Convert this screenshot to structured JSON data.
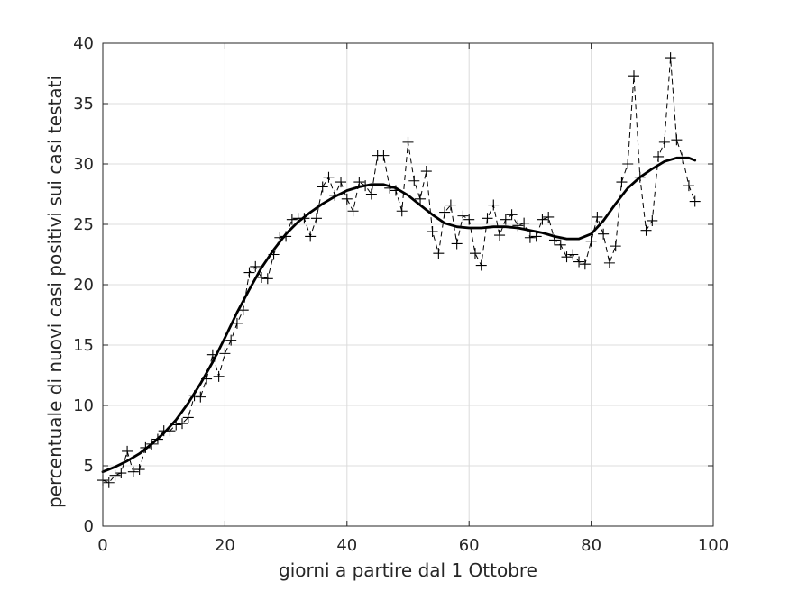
{
  "chart_data": {
    "type": "line",
    "title": "",
    "xlabel": "giorni a partire dal 1 Ottobre",
    "ylabel": "percentuale di nuovi casi positivi sui casi testati",
    "xlim": [
      0,
      100
    ],
    "ylim": [
      0,
      40
    ],
    "xticks": [
      "0",
      "20",
      "40",
      "60",
      "80",
      "100"
    ],
    "yticks": [
      "0",
      "5",
      "10",
      "15",
      "20",
      "25",
      "30",
      "35",
      "40"
    ],
    "grid": true,
    "series": [
      {
        "style": "dashed-with-plus-markers",
        "color": "#000000",
        "x": [
          0,
          1,
          2,
          3,
          4,
          5,
          6,
          7,
          8,
          9,
          10,
          11,
          12,
          13,
          14,
          15,
          16,
          17,
          18,
          19,
          20,
          21,
          22,
          23,
          24,
          25,
          26,
          27,
          28,
          29,
          30,
          31,
          32,
          33,
          34,
          35,
          36,
          37,
          38,
          39,
          40,
          41,
          42,
          43,
          44,
          45,
          46,
          47,
          48,
          49,
          50,
          51,
          52,
          53,
          54,
          55,
          56,
          57,
          58,
          59,
          60,
          61,
          62,
          63,
          64,
          65,
          66,
          67,
          68,
          69,
          70,
          71,
          72,
          73,
          74,
          75,
          76,
          77,
          78,
          79,
          80,
          81,
          82,
          83,
          84,
          85,
          86,
          87,
          88,
          89,
          90,
          91,
          92,
          93,
          94,
          95,
          96,
          97
        ],
        "y": [
          3.8,
          3.6,
          4.2,
          4.4,
          6.2,
          4.5,
          4.7,
          6.5,
          6.8,
          7.2,
          7.9,
          7.9,
          8.4,
          8.5,
          9.0,
          10.8,
          10.7,
          12.2,
          14.2,
          12.4,
          14.3,
          15.4,
          16.8,
          17.9,
          21.0,
          21.5,
          20.6,
          20.5,
          22.5,
          23.9,
          24.0,
          25.4,
          25.5,
          25.5,
          24.0,
          25.5,
          28.1,
          28.9,
          27.4,
          28.5,
          27.1,
          26.1,
          28.5,
          28.2,
          27.5,
          30.7,
          30.7,
          28.0,
          27.8,
          26.1,
          31.8,
          28.6,
          27.1,
          29.4,
          24.4,
          22.6,
          26.0,
          26.6,
          23.4,
          25.7,
          25.4,
          22.6,
          21.6,
          25.5,
          26.6,
          24.1,
          25.4,
          25.8,
          24.9,
          25.1,
          23.9,
          24.0,
          25.4,
          25.6,
          23.7,
          23.3,
          22.3,
          22.5,
          21.9,
          21.7,
          23.6,
          25.6,
          24.2,
          21.8,
          23.2,
          28.5,
          30.0,
          37.3,
          28.9,
          24.5,
          25.3,
          30.6,
          31.8,
          38.8,
          32.0,
          30.5,
          28.2,
          26.9
        ]
      },
      {
        "style": "solid-thick",
        "color": "#000000",
        "x": [
          0,
          2,
          4,
          6,
          8,
          10,
          12,
          14,
          16,
          18,
          20,
          22,
          24,
          26,
          28,
          30,
          32,
          34,
          36,
          38,
          40,
          42,
          44,
          46,
          48,
          50,
          52,
          54,
          56,
          58,
          60,
          62,
          64,
          66,
          68,
          70,
          72,
          74,
          76,
          78,
          80,
          82,
          84,
          86,
          88,
          90,
          92,
          94,
          96,
          97
        ],
        "y": [
          4.5,
          4.9,
          5.4,
          6.0,
          6.8,
          7.7,
          8.8,
          10.2,
          11.8,
          13.6,
          15.6,
          17.7,
          19.6,
          21.4,
          22.9,
          24.2,
          25.2,
          26.0,
          26.7,
          27.3,
          27.8,
          28.1,
          28.3,
          28.3,
          28.0,
          27.4,
          26.6,
          25.8,
          25.1,
          24.8,
          24.7,
          24.7,
          24.8,
          24.8,
          24.7,
          24.5,
          24.3,
          24.0,
          23.8,
          23.8,
          24.2,
          25.3,
          26.7,
          28.0,
          28.9,
          29.6,
          30.2,
          30.5,
          30.5,
          30.3
        ]
      }
    ]
  }
}
